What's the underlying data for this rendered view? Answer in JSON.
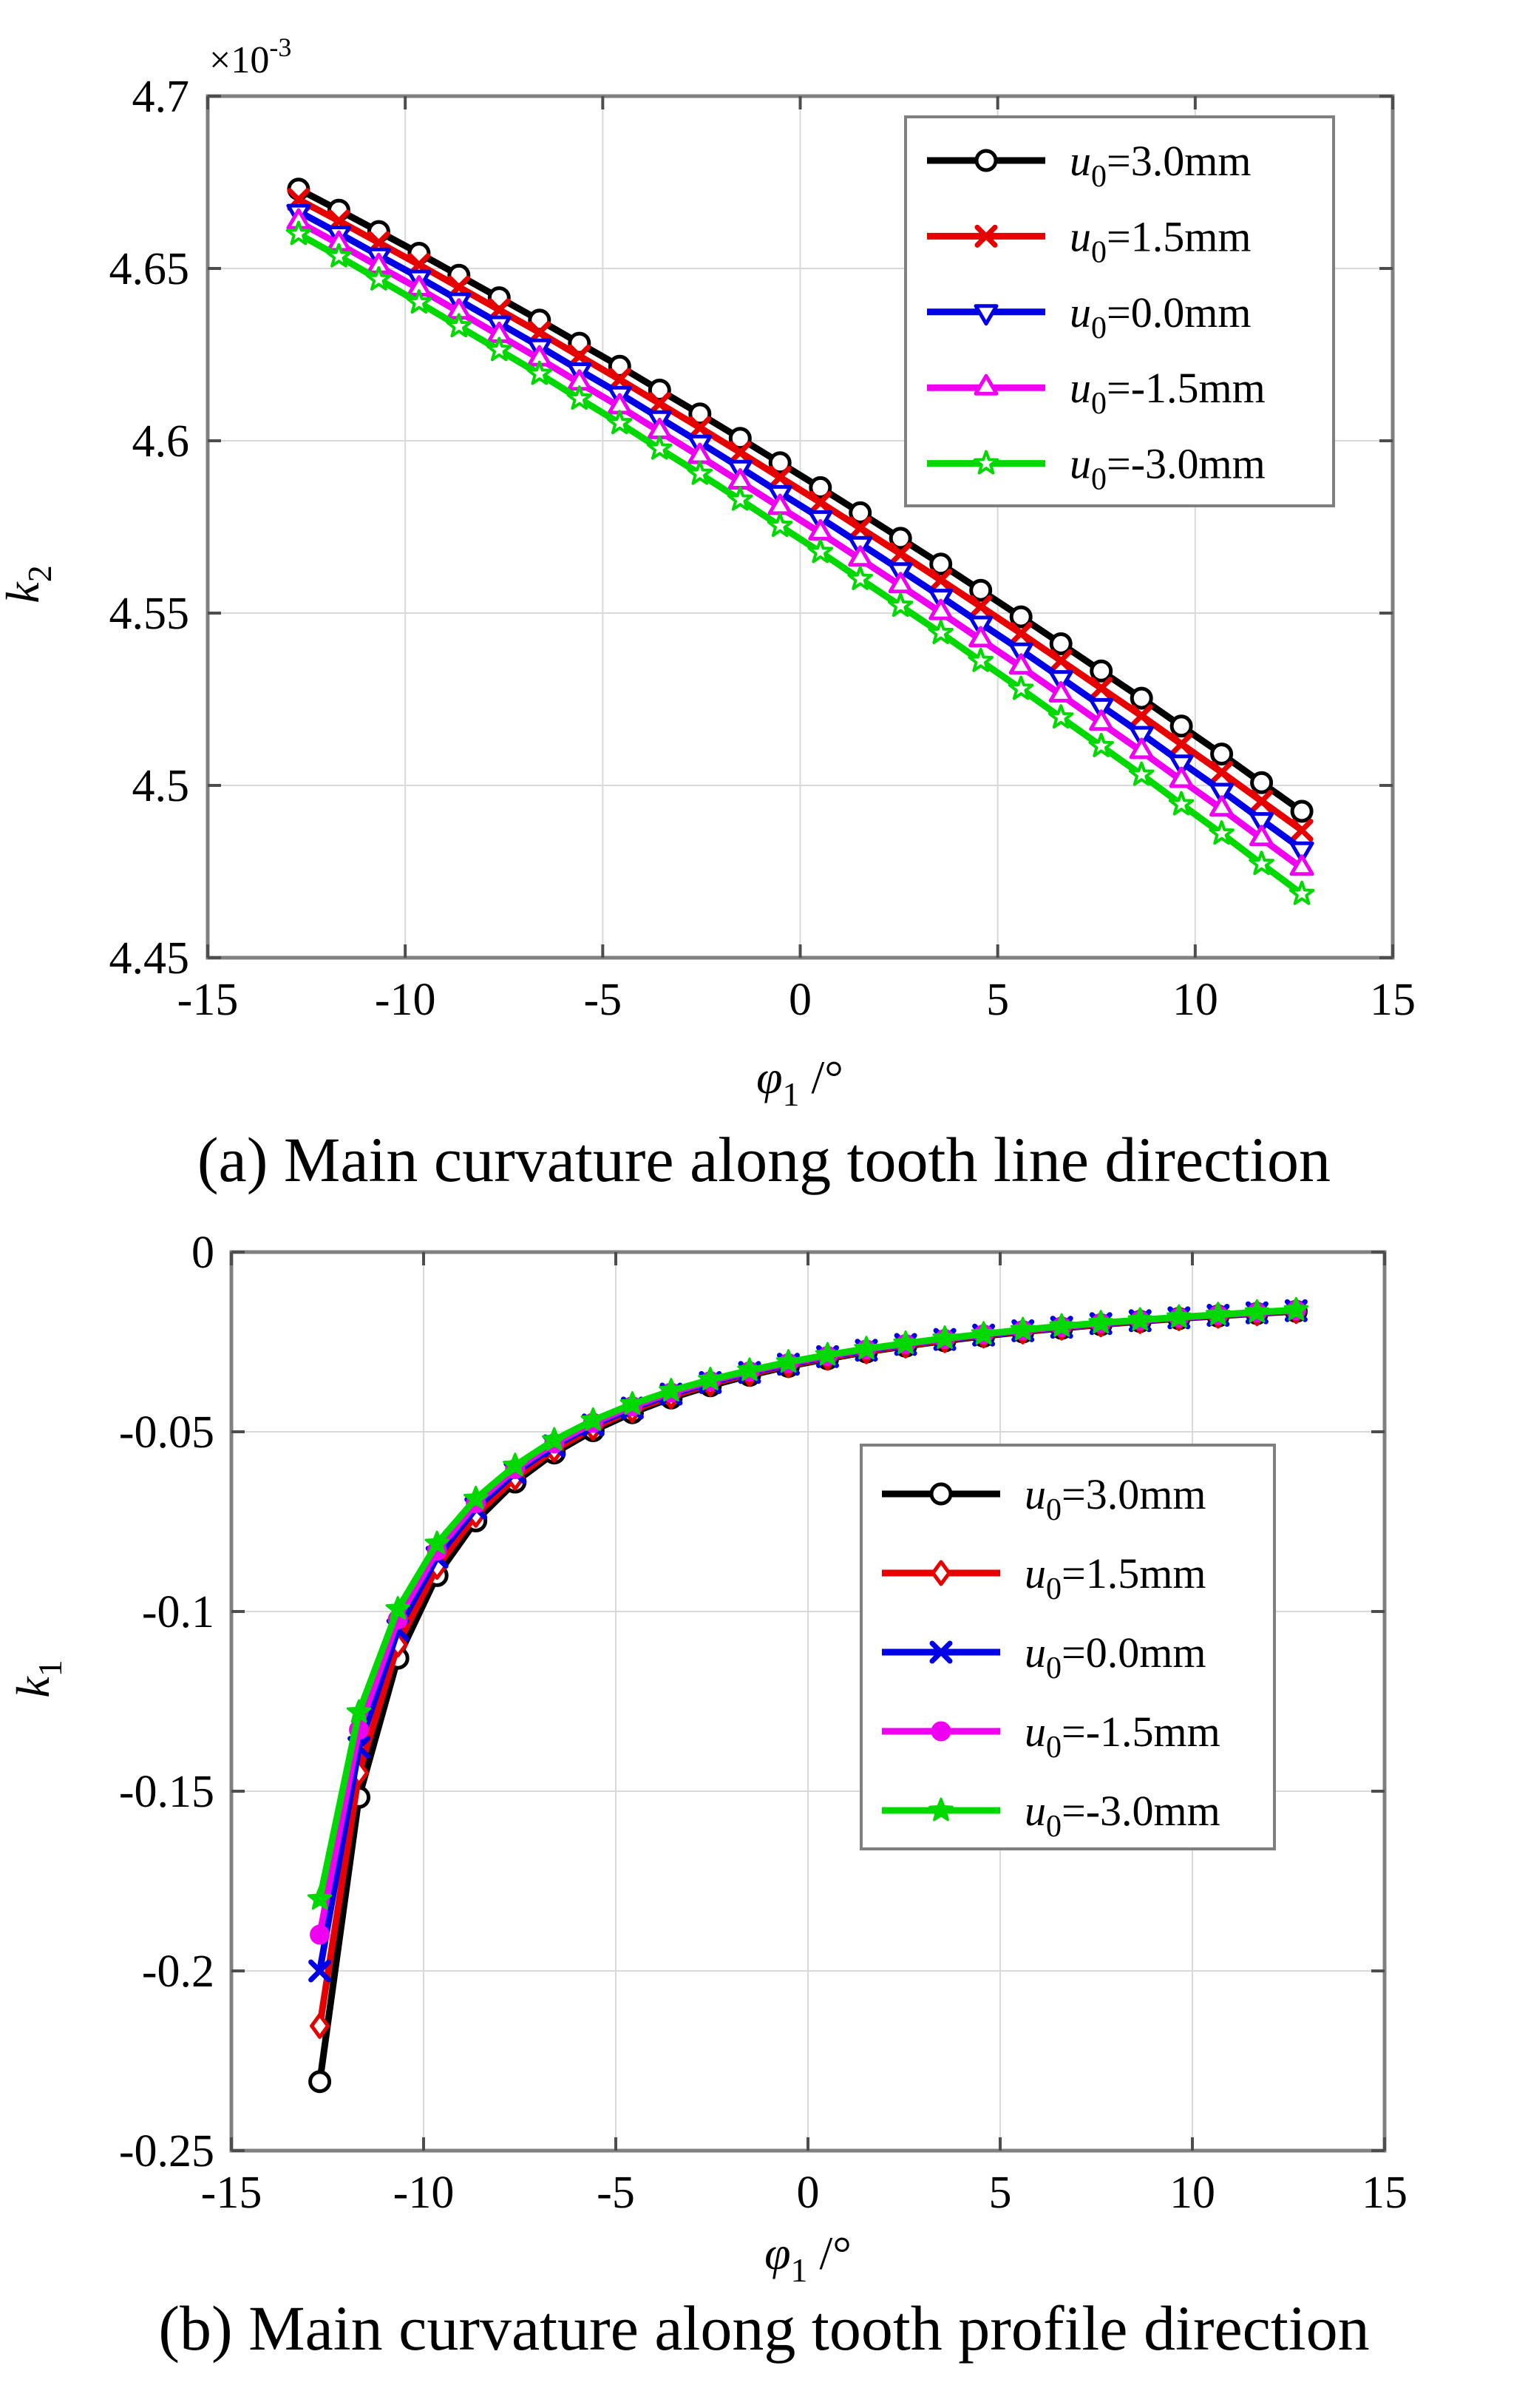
{
  "page": {
    "background": "#ffffff",
    "text_color": "#000000"
  },
  "style_colors": {
    "grid": "#d9d9d9",
    "axis_box": "#808080",
    "tick": "#4d4d4d",
    "legend_border": "#808080",
    "legend_bg": "#ffffff"
  },
  "chart_data": [
    {
      "id": "a",
      "type": "line",
      "caption": "(a) Main curvature along tooth line direction",
      "xlabel": {
        "base": "φ",
        "sub": "1",
        "rest": " /°",
        "text": "phi_1 /deg"
      },
      "ylabel": {
        "base": "k",
        "sub": "2",
        "text": "k2"
      },
      "exponent": {
        "base": "×10",
        "sup": "-3",
        "text": "x10^-3"
      },
      "xlim": [
        -15,
        15
      ],
      "ylim": [
        4.45,
        4.7
      ],
      "xticks": [
        -15,
        -10,
        -5,
        0,
        5,
        10,
        15
      ],
      "xtick_labels": [
        "-15",
        "-10",
        "-5",
        "0",
        "5",
        "10",
        "15"
      ],
      "yticks": [
        4.45,
        4.5,
        4.55,
        4.6,
        4.65,
        4.7
      ],
      "ytick_labels": [
        "4.45",
        "4.5",
        "4.55",
        "4.6",
        "4.65",
        "4.7"
      ],
      "grid": true,
      "legend_position": "upper-right-inset",
      "y_scale_note": "values in units of 1e-3",
      "x": [
        -12.7,
        -11.68,
        -10.67,
        -9.65,
        -8.64,
        -7.62,
        -6.6,
        -5.59,
        -4.57,
        -3.56,
        -2.54,
        -1.52,
        -0.51,
        0.51,
        1.52,
        2.54,
        3.56,
        4.57,
        5.59,
        6.6,
        7.62,
        8.64,
        9.65,
        10.67,
        11.68,
        12.7
      ],
      "series": [
        {
          "name": "u0=3.0mm",
          "label": {
            "base": "u",
            "sub": "0",
            "rest": "=3.0mm"
          },
          "color": "#000000",
          "marker": "circle-open",
          "values": [
            4.673,
            4.6669,
            4.6607,
            4.6544,
            4.648,
            4.6415,
            4.635,
            4.6283,
            4.6216,
            4.6147,
            4.6078,
            4.6007,
            4.5936,
            4.5864,
            4.5791,
            4.5717,
            4.5642,
            4.5566,
            4.5489,
            4.5411,
            4.5332,
            4.5253,
            4.5172,
            4.5091,
            4.5008,
            4.4925
          ]
        },
        {
          "name": "u0=1.5mm",
          "label": {
            "base": "u",
            "sub": "0",
            "rest": "=1.5mm"
          },
          "color": "#e60000",
          "marker": "x-cross",
          "values": [
            4.67,
            4.6638,
            4.6575,
            4.6511,
            4.6446,
            4.638,
            4.6314,
            4.6246,
            4.6178,
            4.6108,
            4.6038,
            4.5966,
            4.5894,
            4.5821,
            4.5747,
            4.5672,
            4.5596,
            4.5519,
            4.5441,
            4.5362,
            4.5282,
            4.5202,
            4.512,
            4.5038,
            4.4954,
            4.487
          ]
        },
        {
          "name": "u0=0.0mm",
          "label": {
            "base": "u",
            "sub": "0",
            "rest": "=0.0mm"
          },
          "color": "#0000e6",
          "marker": "triangle-down-open",
          "values": [
            4.6665,
            4.6602,
            4.6538,
            4.6474,
            4.6408,
            4.6341,
            4.6274,
            4.6205,
            4.6137,
            4.6066,
            4.5995,
            4.5922,
            4.5849,
            4.5776,
            4.5701,
            4.5625,
            4.5548,
            4.547,
            4.5392,
            4.5312,
            4.5231,
            4.515,
            4.5067,
            4.4985,
            4.49,
            4.4815
          ]
        },
        {
          "name": "u0=-1.5mm",
          "label": {
            "base": "u",
            "sub": "0",
            "rest": "=-1.5mm"
          },
          "color": "#f000f0",
          "marker": "triangle-up-open",
          "values": [
            4.6635,
            4.6571,
            4.6506,
            4.6441,
            4.6374,
            4.6306,
            4.6238,
            4.6168,
            4.6099,
            4.6027,
            4.5955,
            4.5881,
            4.5807,
            4.5733,
            4.5657,
            4.558,
            4.5502,
            4.5423,
            4.5344,
            4.5263,
            4.5181,
            4.5099,
            4.5015,
            4.4932,
            4.4846,
            4.476
          ]
        },
        {
          "name": "u0=-3.0mm",
          "label": {
            "base": "u",
            "sub": "0",
            "rest": "=-3.0mm"
          },
          "color": "#00d900",
          "marker": "star5-open",
          "values": [
            4.66,
            4.6535,
            4.6468,
            4.6401,
            4.6332,
            4.6263,
            4.6194,
            4.6122,
            4.6051,
            4.5977,
            4.5904,
            4.5829,
            4.5753,
            4.5677,
            4.5599,
            4.5521,
            4.5442,
            4.5361,
            4.528,
            4.5197,
            4.5114,
            4.5031,
            4.4945,
            4.486,
            4.4772,
            4.4685
          ]
        }
      ]
    },
    {
      "id": "b",
      "type": "line",
      "caption": "(b) Main curvature along tooth profile direction",
      "xlabel": {
        "base": "φ",
        "sub": "1",
        "rest": " /°",
        "text": "phi_1 /deg"
      },
      "ylabel": {
        "base": "k",
        "sub": "1",
        "text": "k1"
      },
      "xlim": [
        -15,
        15
      ],
      "ylim": [
        -0.25,
        0
      ],
      "xticks": [
        -15,
        -10,
        -5,
        0,
        5,
        10,
        15
      ],
      "xtick_labels": [
        "-15",
        "-10",
        "-5",
        "0",
        "5",
        "10",
        "15"
      ],
      "yticks": [
        -0.25,
        -0.2,
        -0.15,
        -0.1,
        -0.05,
        0
      ],
      "ytick_labels": [
        "-0.25",
        "-0.2",
        "-0.15",
        "-0.1",
        "-0.05",
        "0"
      ],
      "grid": true,
      "legend_position": "middle-right-inset",
      "x": [
        -12.7,
        -11.68,
        -10.67,
        -9.65,
        -8.64,
        -7.62,
        -6.6,
        -5.59,
        -4.57,
        -3.56,
        -2.54,
        -1.52,
        -0.51,
        0.51,
        1.52,
        2.54,
        3.56,
        4.57,
        5.59,
        6.6,
        7.62,
        8.64,
        9.65,
        10.67,
        11.68,
        12.7
      ],
      "series": [
        {
          "name": "u0=3.0mm",
          "label": {
            "base": "u",
            "sub": "0",
            "rest": "=3.0mm"
          },
          "color": "#000000",
          "marker": "circle-open",
          "values": [
            -0.2308,
            -0.1517,
            -0.113,
            -0.09,
            -0.0748,
            -0.064,
            -0.0559,
            -0.0497,
            -0.0447,
            -0.0406,
            -0.0372,
            -0.0343,
            -0.0318,
            -0.0297,
            -0.0278,
            -0.0262,
            -0.0247,
            -0.0234,
            -0.0222,
            -0.0212,
            -0.0202,
            -0.0193,
            -0.0185,
            -0.0178,
            -0.0171,
            -0.0165
          ]
        },
        {
          "name": "u0=1.5mm",
          "label": {
            "base": "u",
            "sub": "0",
            "rest": "=1.5mm"
          },
          "color": "#e60000",
          "marker": "diamond-open",
          "values": [
            -0.2153,
            -0.1449,
            -0.1092,
            -0.0876,
            -0.0731,
            -0.0628,
            -0.055,
            -0.0489,
            -0.044,
            -0.0401,
            -0.0367,
            -0.0339,
            -0.0315,
            -0.0294,
            -0.0276,
            -0.026,
            -0.0245,
            -0.0232,
            -0.0221,
            -0.021,
            -0.0201,
            -0.0192,
            -0.0184,
            -0.0177,
            -0.017,
            -0.0164
          ]
        },
        {
          "name": "u0=0.0mm",
          "label": {
            "base": "u",
            "sub": "0",
            "rest": "=0.0mm"
          },
          "color": "#0000e6",
          "marker": "x-cross",
          "values": [
            -0.2,
            -0.1378,
            -0.1051,
            -0.0849,
            -0.0713,
            -0.0614,
            -0.0539,
            -0.0481,
            -0.0434,
            -0.0395,
            -0.0363,
            -0.0335,
            -0.0312,
            -0.0291,
            -0.0273,
            -0.0257,
            -0.0243,
            -0.0231,
            -0.0219,
            -0.0209,
            -0.0199,
            -0.0191,
            -0.0183,
            -0.0176,
            -0.0169,
            -0.0163
          ]
        },
        {
          "name": "u0=-1.5mm",
          "label": {
            "base": "u",
            "sub": "0",
            "rest": "=-1.5mm"
          },
          "color": "#f000f0",
          "marker": "circle-filled",
          "values": [
            -0.1899,
            -0.1329,
            -0.1022,
            -0.0831,
            -0.0699,
            -0.0604,
            -0.0532,
            -0.0475,
            -0.0429,
            -0.0391,
            -0.0359,
            -0.0332,
            -0.0309,
            -0.0289,
            -0.0271,
            -0.0256,
            -0.0242,
            -0.0229,
            -0.0218,
            -0.0208,
            -0.0198,
            -0.019,
            -0.0182,
            -0.0175,
            -0.0168,
            -0.0162
          ]
        },
        {
          "name": "u0=-3.0mm",
          "label": {
            "base": "u",
            "sub": "0",
            "rest": "=-3.0mm"
          },
          "color": "#00d900",
          "marker": "star5-filled",
          "values": [
            -0.18,
            -0.128,
            -0.0993,
            -0.0811,
            -0.0686,
            -0.0594,
            -0.0523,
            -0.0468,
            -0.0423,
            -0.0386,
            -0.0355,
            -0.0329,
            -0.0306,
            -0.0286,
            -0.0269,
            -0.0254,
            -0.024,
            -0.0228,
            -0.0216,
            -0.0206,
            -0.0197,
            -0.0189,
            -0.0181,
            -0.0174,
            -0.0167,
            -0.0161
          ]
        }
      ]
    }
  ]
}
